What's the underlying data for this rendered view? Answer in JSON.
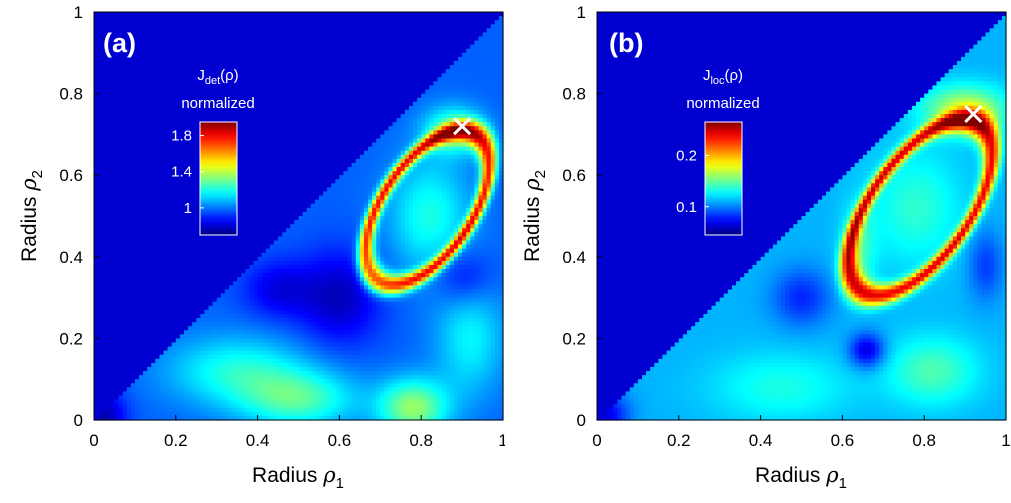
{
  "chart_data": [
    {
      "type": "heatmap",
      "panel_label": "(a)",
      "xlabel": "Radius",
      "xlabel_symbol": "ρ",
      "xlabel_sub": "1",
      "ylabel": "Radius",
      "ylabel_symbol": "ρ",
      "ylabel_sub": "2",
      "xlim": [
        0,
        1
      ],
      "ylim": [
        0,
        1
      ],
      "xticks": [
        "0",
        "0.2",
        "0.4",
        "0.6",
        "0.8",
        "1"
      ],
      "yticks": [
        "0",
        "0.2",
        "0.4",
        "0.6",
        "0.8",
        "1"
      ],
      "domain": "upper-left triangle (rho2 >= rho1) masked; data for rho1 > rho2",
      "colorbar": {
        "title_main": "J",
        "title_sub": "det",
        "title_arg": "(ρ)",
        "title_line2": "normalized",
        "ticks": [
          "1.8",
          "1.4",
          "1"
        ],
        "tick_values": [
          1.8,
          1.4,
          1.0
        ],
        "range": [
          0.7,
          1.95
        ],
        "colormap": "jet"
      },
      "marker": {
        "symbol": "×",
        "x": 0.9,
        "y": 0.72,
        "color": "#ffffff"
      },
      "features": [
        {
          "kind": "elliptical ridge",
          "center": [
            0.82,
            0.52
          ],
          "value_max": 1.9
        },
        {
          "kind": "hot spot",
          "center": [
            0.78,
            0.02
          ],
          "value": 1.55
        }
      ]
    },
    {
      "type": "heatmap",
      "panel_label": "(b)",
      "xlabel": "Radius",
      "xlabel_symbol": "ρ",
      "xlabel_sub": "1",
      "ylabel": "Radius",
      "ylabel_symbol": "ρ",
      "ylabel_sub": "2",
      "xlim": [
        0,
        1
      ],
      "ylim": [
        0,
        1
      ],
      "xticks": [
        "0",
        "0.2",
        "0.4",
        "0.6",
        "0.8",
        "1"
      ],
      "yticks": [
        "0",
        "0.2",
        "0.4",
        "0.6",
        "0.8",
        "1"
      ],
      "domain": "upper-left triangle (rho2 >= rho1) masked; data for rho1 > rho2",
      "colorbar": {
        "title_main": "J",
        "title_sub": "loc",
        "title_arg": "(ρ)",
        "title_line2": "normalized",
        "ticks": [
          "0.2",
          "0.1"
        ],
        "tick_values": [
          0.2,
          0.1
        ],
        "range": [
          0.045,
          0.265
        ],
        "colormap": "jet"
      },
      "marker": {
        "symbol": "×",
        "x": 0.92,
        "y": 0.75,
        "color": "#ffffff"
      },
      "features": [
        {
          "kind": "elliptical ridge",
          "center": [
            0.78,
            0.52
          ],
          "value_max": 0.26
        },
        {
          "kind": "dark spot",
          "center": [
            0.66,
            0.18
          ],
          "value": 0.07
        }
      ]
    }
  ]
}
